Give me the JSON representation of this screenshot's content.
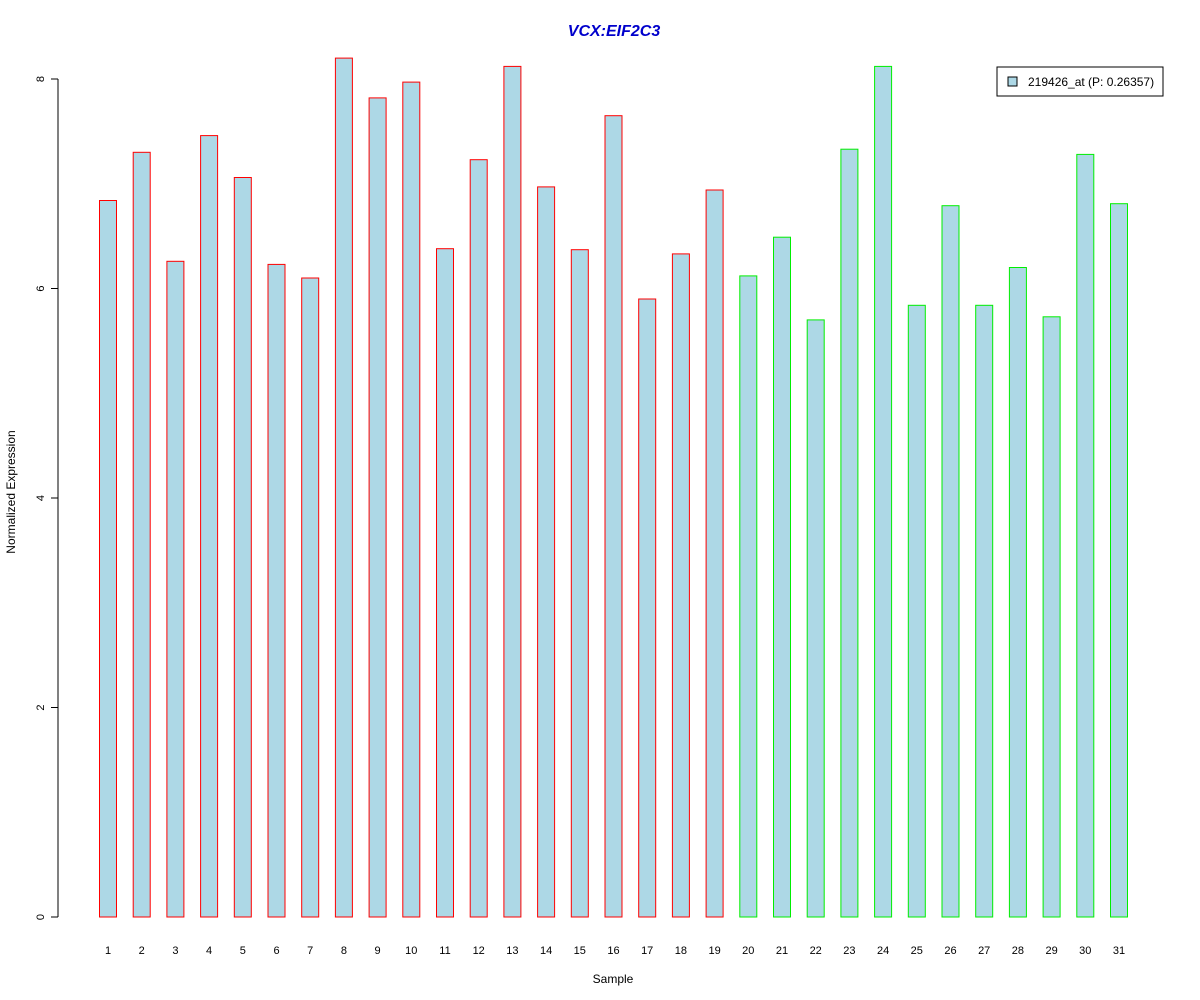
{
  "chart_data": {
    "type": "bar",
    "title": "VCX:EIF2C3",
    "xlabel": "Sample",
    "ylabel": "Normalized Expression",
    "ylim": [
      0,
      8.2
    ],
    "yticks": [
      0,
      2,
      4,
      6,
      8
    ],
    "grid": false,
    "categories": [
      "1",
      "2",
      "3",
      "4",
      "5",
      "6",
      "7",
      "8",
      "9",
      "10",
      "11",
      "12",
      "13",
      "14",
      "15",
      "16",
      "17",
      "18",
      "19",
      "20",
      "21",
      "22",
      "23",
      "24",
      "25",
      "26",
      "27",
      "28",
      "29",
      "30",
      "31"
    ],
    "values": [
      6.84,
      7.3,
      6.26,
      7.46,
      7.06,
      6.23,
      6.1,
      8.2,
      7.82,
      7.97,
      6.38,
      7.23,
      8.12,
      6.97,
      6.37,
      7.65,
      5.9,
      6.33,
      6.94,
      6.12,
      6.49,
      5.7,
      7.33,
      8.12,
      5.84,
      6.79,
      5.84,
      6.2,
      5.73,
      7.28,
      6.81
    ],
    "groups": [
      {
        "samples": [
          1,
          19
        ],
        "border_color": "#ff0000"
      },
      {
        "samples": [
          20,
          31
        ],
        "border_color": "#00ee00"
      }
    ],
    "series": [
      {
        "name": "219426_at (P: 0.26357)",
        "fill_color": "#add8e6"
      }
    ],
    "legend": {
      "placement": "top-right",
      "text": "219426_at (P: 0.26357)"
    },
    "colors": {
      "title": "#0000cc",
      "bar_fill": "#add8e6",
      "group1_border": "#ff0000",
      "group2_border": "#00ee00"
    }
  }
}
